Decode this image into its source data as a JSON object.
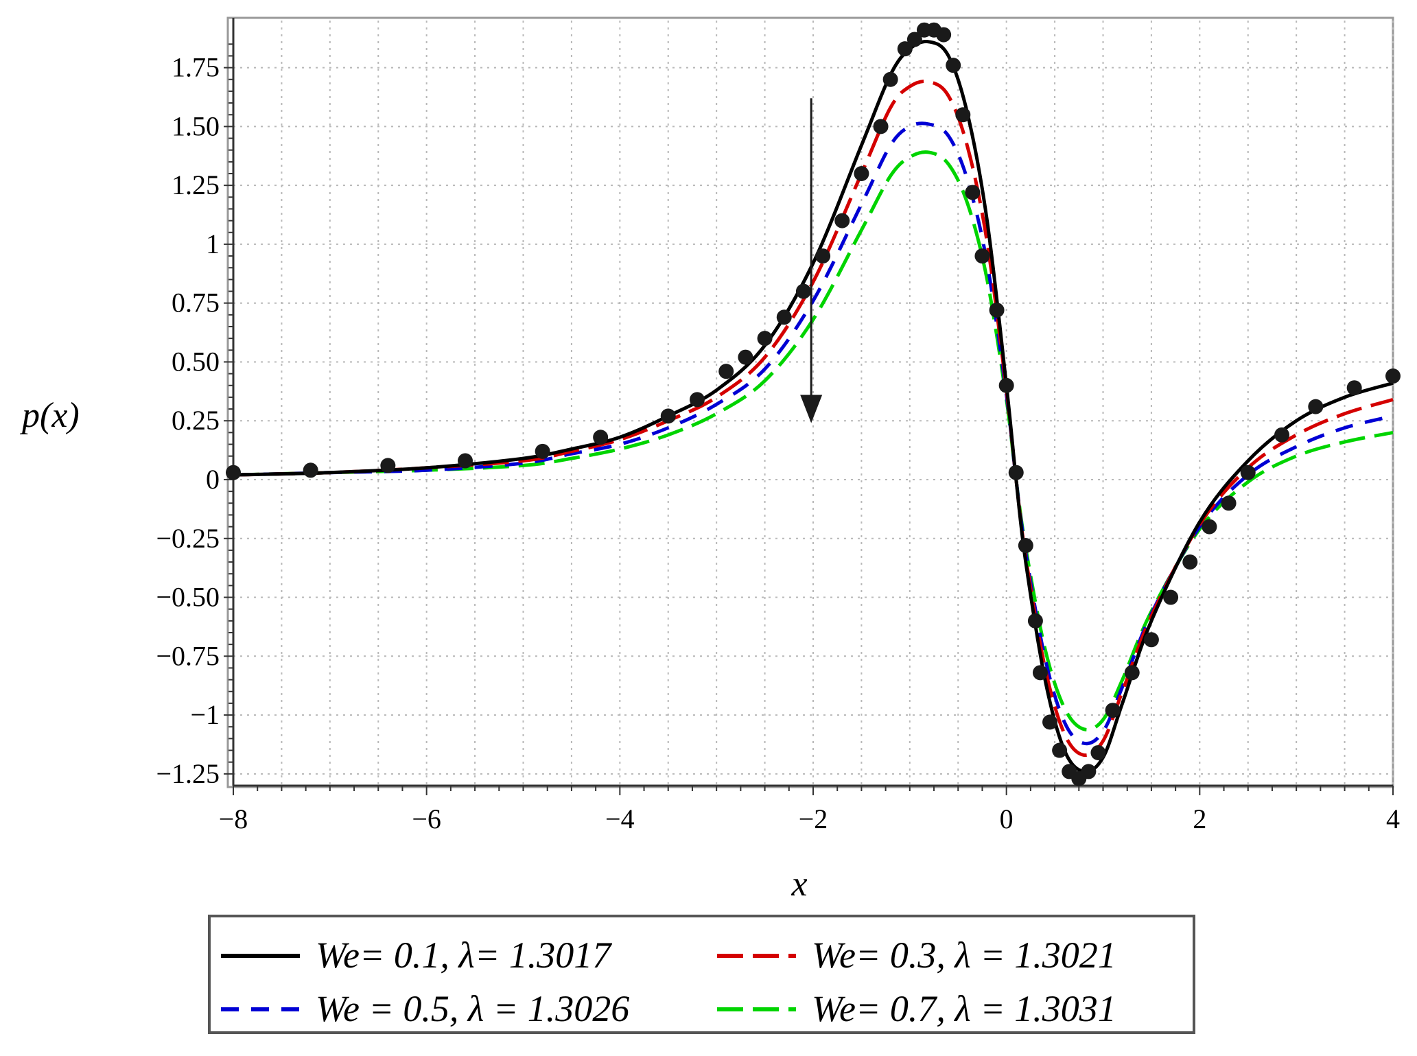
{
  "chart_data": {
    "type": "line",
    "title": "",
    "xlabel": "x",
    "ylabel": "p(x)",
    "xlim": [
      -8,
      4
    ],
    "ylim": [
      -1.3,
      1.95
    ],
    "grid": true,
    "legend_position": "bottom",
    "x_ticks": [
      -8,
      -6,
      -4,
      -2,
      0,
      2,
      4
    ],
    "x_tick_labels": [
      "−8",
      "−6",
      "−4",
      "−2",
      "0",
      "2",
      "4"
    ],
    "y_ticks": [
      -1.25,
      -1,
      -0.75,
      -0.5,
      -0.25,
      0,
      0.25,
      0.5,
      0.75,
      1,
      1.25,
      1.5,
      1.75
    ],
    "y_tick_labels": [
      "−1.25",
      "−1",
      "−0.75",
      "−0.50",
      "−0.25",
      "0",
      "0.25",
      "0.50",
      "0.75",
      "1",
      "1.25",
      "1.50",
      "1.75"
    ],
    "annotation": "arrow at x = −2 pointing downward from y ≈ 1.62 to y ≈ 0.25",
    "series": [
      {
        "name": "We= 0.1, λ= 1.3017",
        "color": "#000000",
        "style": "solid",
        "x": [
          -8,
          -7,
          -6,
          -5,
          -4.5,
          -4,
          -3.5,
          -3,
          -2.5,
          -2,
          -1.5,
          -1.2,
          -1,
          -0.8,
          -0.6,
          -0.4,
          -0.2,
          0,
          0.1,
          0.2,
          0.4,
          0.6,
          0.8,
          1,
          1.2,
          1.5,
          2,
          2.5,
          3,
          3.5,
          4
        ],
        "y": [
          0.02,
          0.03,
          0.05,
          0.09,
          0.13,
          0.18,
          0.27,
          0.38,
          0.57,
          0.92,
          1.42,
          1.72,
          1.83,
          1.86,
          1.8,
          1.55,
          1.1,
          0.4,
          0.0,
          -0.35,
          -0.85,
          -1.15,
          -1.24,
          -1.18,
          -0.95,
          -0.6,
          -0.18,
          0.08,
          0.25,
          0.35,
          0.41
        ]
      },
      {
        "name": "We= 0.3, λ = 1.3021",
        "color": "#d40000",
        "style": "long-dash",
        "x": [
          -8,
          -7,
          -6,
          -5,
          -4.5,
          -4,
          -3.5,
          -3,
          -2.5,
          -2,
          -1.5,
          -1.2,
          -1,
          -0.8,
          -0.6,
          -0.4,
          -0.2,
          0,
          0.1,
          0.2,
          0.4,
          0.6,
          0.8,
          1,
          1.2,
          1.5,
          2,
          2.5,
          3,
          3.5,
          4
        ],
        "y": [
          0.02,
          0.03,
          0.05,
          0.08,
          0.12,
          0.17,
          0.25,
          0.35,
          0.52,
          0.84,
          1.3,
          1.58,
          1.67,
          1.69,
          1.63,
          1.41,
          1.01,
          0.38,
          0.0,
          -0.33,
          -0.8,
          -1.08,
          -1.17,
          -1.11,
          -0.9,
          -0.58,
          -0.19,
          0.05,
          0.19,
          0.28,
          0.34
        ]
      },
      {
        "name": "We = 0.5, λ = 1.3026",
        "color": "#0000d4",
        "style": "dash",
        "x": [
          -8,
          -7,
          -6,
          -5,
          -4.5,
          -4,
          -3.5,
          -3,
          -2.5,
          -2,
          -1.5,
          -1.2,
          -1,
          -0.8,
          -0.6,
          -0.4,
          -0.2,
          0,
          0.1,
          0.2,
          0.4,
          0.6,
          0.8,
          1,
          1.2,
          1.5,
          2,
          2.5,
          3,
          3.5,
          4
        ],
        "y": [
          0.02,
          0.03,
          0.04,
          0.07,
          0.11,
          0.15,
          0.22,
          0.32,
          0.47,
          0.76,
          1.17,
          1.42,
          1.5,
          1.51,
          1.46,
          1.27,
          0.92,
          0.36,
          0.0,
          -0.31,
          -0.76,
          -1.03,
          -1.12,
          -1.07,
          -0.88,
          -0.57,
          -0.2,
          0.02,
          0.14,
          0.22,
          0.27
        ]
      },
      {
        "name": "We= 0.7, λ = 1.3031",
        "color": "#00d400",
        "style": "long-dash",
        "x": [
          -8,
          -7,
          -6,
          -5,
          -4.5,
          -4,
          -3.5,
          -3,
          -2.5,
          -2,
          -1.5,
          -1.2,
          -1,
          -0.8,
          -0.6,
          -0.4,
          -0.2,
          0,
          0.1,
          0.2,
          0.4,
          0.6,
          0.8,
          1,
          1.2,
          1.5,
          2,
          2.5,
          3,
          3.5,
          4
        ],
        "y": [
          0.02,
          0.03,
          0.04,
          0.06,
          0.09,
          0.13,
          0.19,
          0.28,
          0.42,
          0.68,
          1.06,
          1.29,
          1.37,
          1.39,
          1.34,
          1.17,
          0.85,
          0.34,
          0.0,
          -0.29,
          -0.72,
          -0.97,
          -1.06,
          -1.02,
          -0.85,
          -0.56,
          -0.21,
          -0.01,
          0.1,
          0.16,
          0.2
        ]
      }
    ],
    "markers": {
      "color": "#1a1a1a",
      "x": [
        -8,
        -7.2,
        -6.4,
        -5.6,
        -4.8,
        -4.2,
        -3.5,
        -3.2,
        -2.9,
        -2.7,
        -2.5,
        -2.3,
        -2.1,
        -1.9,
        -1.7,
        -1.5,
        -1.3,
        -1.2,
        -1.05,
        -0.95,
        -0.85,
        -0.75,
        -0.65,
        -0.55,
        -0.45,
        -0.35,
        -0.25,
        -0.1,
        0.0,
        0.1,
        0.2,
        0.3,
        0.35,
        0.45,
        0.55,
        0.65,
        0.75,
        0.85,
        0.95,
        1.1,
        1.3,
        1.5,
        1.7,
        1.9,
        2.1,
        2.3,
        2.5,
        2.85,
        3.2,
        3.6,
        4.0
      ],
      "y": [
        0.03,
        0.04,
        0.06,
        0.08,
        0.12,
        0.18,
        0.27,
        0.34,
        0.46,
        0.52,
        0.6,
        0.69,
        0.8,
        0.95,
        1.1,
        1.3,
        1.5,
        1.7,
        1.83,
        1.87,
        1.91,
        1.91,
        1.89,
        1.76,
        1.55,
        1.22,
        0.95,
        0.72,
        0.4,
        0.03,
        -0.28,
        -0.6,
        -0.82,
        -1.03,
        -1.15,
        -1.24,
        -1.27,
        -1.24,
        -1.16,
        -0.98,
        -0.82,
        -0.68,
        -0.5,
        -0.35,
        -0.2,
        -0.1,
        0.03,
        0.19,
        0.31,
        0.39,
        0.44
      ]
    }
  }
}
